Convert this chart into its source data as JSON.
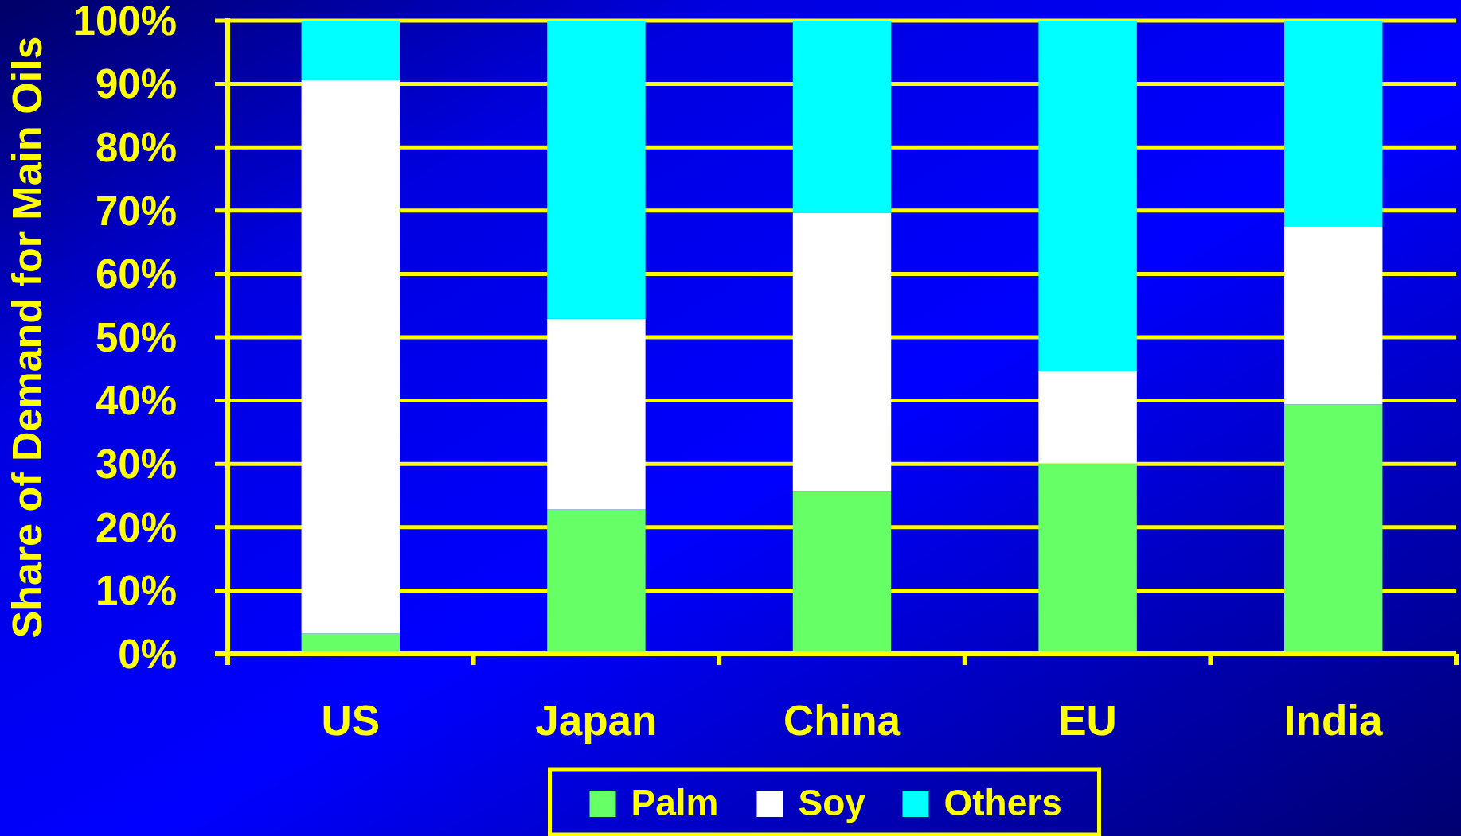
{
  "chart_data": {
    "type": "bar",
    "ylabel": "Share of Demand for Main Oils",
    "categories": [
      "US",
      "Japan",
      "China",
      "EU",
      "India"
    ],
    "stacked": true,
    "legend": "bottom",
    "grid": "y",
    "ylim": [
      0,
      100
    ],
    "yticks": [
      {
        "value": 0,
        "label": "0%"
      },
      {
        "value": 10,
        "label": "10%"
      },
      {
        "value": 20,
        "label": "20%"
      },
      {
        "value": 30,
        "label": "30%"
      },
      {
        "value": 40,
        "label": "40%"
      },
      {
        "value": 50,
        "label": "50%"
      },
      {
        "value": 60,
        "label": "60%"
      },
      {
        "value": 70,
        "label": "70%"
      },
      {
        "value": 80,
        "label": "80%"
      },
      {
        "value": 90,
        "label": "90%"
      },
      {
        "value": 100,
        "label": "100%"
      }
    ],
    "series": [
      {
        "name": "Palm",
        "color": "#66ff66",
        "values": [
          3.2,
          22.8,
          25.7,
          30.1,
          39.4
        ]
      },
      {
        "name": "Soy",
        "color": "#ffffff",
        "values": [
          87.4,
          30.1,
          43.9,
          14.5,
          28.0
        ]
      },
      {
        "name": "Others",
        "color": "#00ffff",
        "values": [
          9.4,
          47.1,
          30.4,
          55.4,
          32.6
        ]
      }
    ]
  }
}
